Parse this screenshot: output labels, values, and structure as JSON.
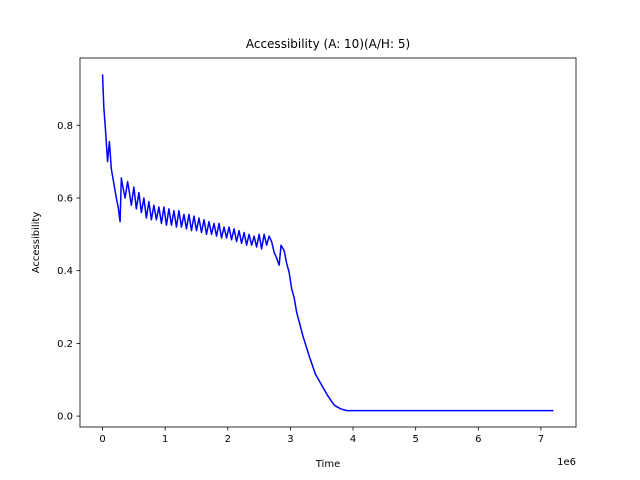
{
  "chart_data": {
    "type": "line",
    "title": "Accessibility (A: 10)(A/H: 5)",
    "xlabel": "Time",
    "ylabel": "Accessibility",
    "x_offset_text": "1e6",
    "xlim": [
      -0.36,
      7.56
    ],
    "ylim": [
      -0.03,
      0.985
    ],
    "x_scale_multiplier": 1000000,
    "xticks": [
      0,
      1,
      2,
      3,
      4,
      5,
      6,
      7
    ],
    "xtick_labels": [
      "0",
      "1",
      "2",
      "3",
      "4",
      "5",
      "6",
      "7"
    ],
    "yticks": [
      0.0,
      0.2,
      0.4,
      0.6,
      0.8
    ],
    "ytick_labels": [
      "0.0",
      "0.2",
      "0.4",
      "0.6",
      "0.8"
    ],
    "grid": false,
    "series": [
      {
        "color": "#0000ff",
        "x": [
          0.0,
          0.02,
          0.05,
          0.08,
          0.11,
          0.14,
          0.18,
          0.22,
          0.25,
          0.28,
          0.3,
          0.32,
          0.36,
          0.4,
          0.42,
          0.46,
          0.5,
          0.54,
          0.58,
          0.62,
          0.66,
          0.7,
          0.74,
          0.78,
          0.82,
          0.86,
          0.9,
          0.94,
          0.98,
          1.02,
          1.06,
          1.1,
          1.14,
          1.18,
          1.22,
          1.26,
          1.3,
          1.34,
          1.38,
          1.42,
          1.46,
          1.5,
          1.54,
          1.58,
          1.62,
          1.66,
          1.7,
          1.74,
          1.78,
          1.82,
          1.86,
          1.9,
          1.94,
          1.98,
          2.02,
          2.06,
          2.1,
          2.14,
          2.18,
          2.22,
          2.26,
          2.3,
          2.34,
          2.38,
          2.42,
          2.46,
          2.5,
          2.54,
          2.58,
          2.62,
          2.66,
          2.7,
          2.74,
          2.78,
          2.82,
          2.85,
          2.9,
          2.94,
          2.98,
          3.02,
          3.06,
          3.1,
          3.2,
          3.3,
          3.4,
          3.5,
          3.6,
          3.7,
          3.8,
          3.9,
          4.0,
          5.0,
          6.0,
          7.2
        ],
        "y": [
          0.94,
          0.85,
          0.78,
          0.7,
          0.755,
          0.68,
          0.64,
          0.6,
          0.575,
          0.535,
          0.655,
          0.635,
          0.6,
          0.645,
          0.625,
          0.58,
          0.63,
          0.57,
          0.615,
          0.56,
          0.6,
          0.545,
          0.59,
          0.54,
          0.58,
          0.54,
          0.575,
          0.53,
          0.575,
          0.525,
          0.57,
          0.525,
          0.565,
          0.52,
          0.565,
          0.52,
          0.555,
          0.515,
          0.555,
          0.51,
          0.55,
          0.51,
          0.545,
          0.505,
          0.54,
          0.5,
          0.535,
          0.5,
          0.53,
          0.495,
          0.53,
          0.49,
          0.52,
          0.49,
          0.52,
          0.485,
          0.515,
          0.48,
          0.51,
          0.475,
          0.505,
          0.47,
          0.5,
          0.47,
          0.495,
          0.465,
          0.5,
          0.46,
          0.5,
          0.47,
          0.495,
          0.48,
          0.45,
          0.435,
          0.415,
          0.47,
          0.455,
          0.42,
          0.395,
          0.35,
          0.325,
          0.285,
          0.22,
          0.165,
          0.115,
          0.085,
          0.055,
          0.03,
          0.02,
          0.015,
          0.015,
          0.015,
          0.015,
          0.015
        ]
      }
    ]
  }
}
